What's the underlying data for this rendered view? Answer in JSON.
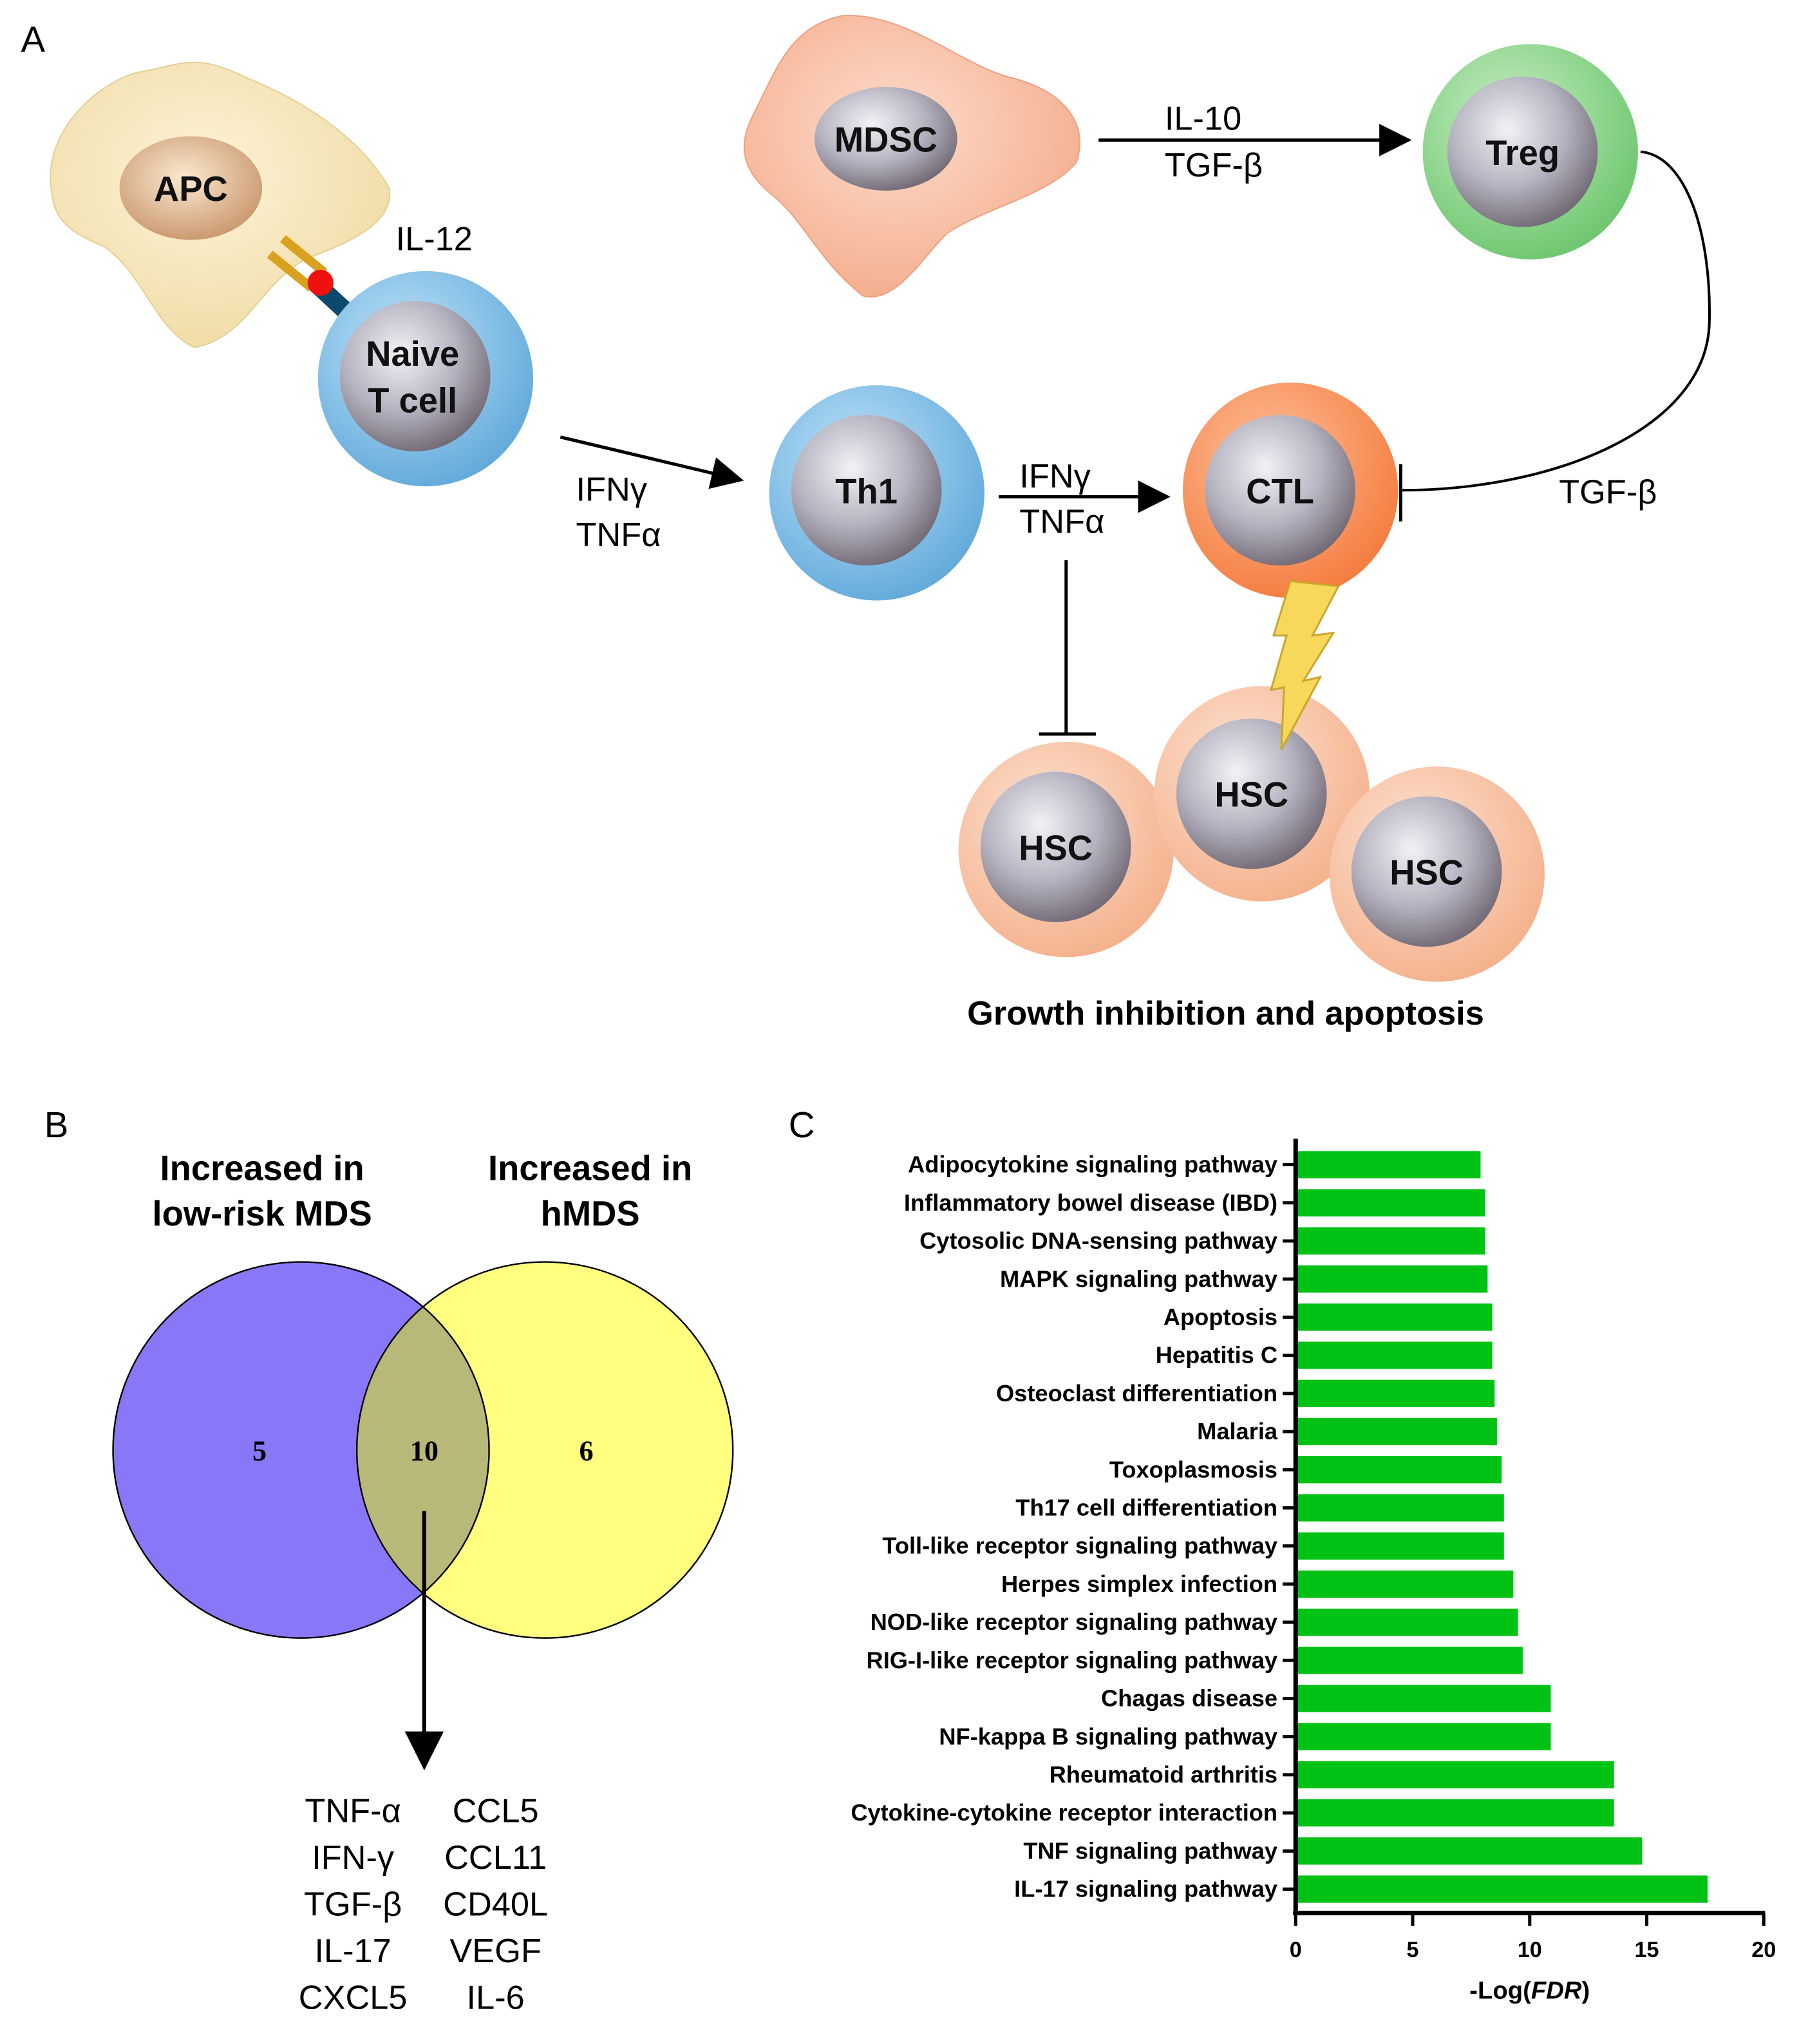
{
  "panel_a": {
    "letter": "A",
    "cells": {
      "apc": "APC",
      "naive_line1": "Naive",
      "naive_line2": "T cell",
      "th1": "Th1",
      "ctl": "CTL",
      "mdsc": "MDSC",
      "treg": "Treg",
      "hsc1": "HSC",
      "hsc2": "HSC",
      "hsc3": "HSC"
    },
    "labels": {
      "il12": "IL-12",
      "naive_to_th1_1": "IFNγ",
      "naive_to_th1_2": "TNFα",
      "th1_to_ctl_1": "IFNγ",
      "th1_to_ctl_2": "TNFα",
      "mdsc_to_treg_1": "IL-10",
      "mdsc_to_treg_2": "TGF-β",
      "treg_to_ctl": "TGF-β"
    },
    "caption": "Growth inhibition and apoptosis"
  },
  "panel_b": {
    "letter": "B",
    "left_title_1": "Increased in",
    "left_title_2": "low-risk MDS",
    "right_title_1": "Increased in",
    "right_title_2": "hMDS",
    "left_only": "5",
    "overlap": "10",
    "right_only": "6",
    "shared_left": [
      "TNF-α",
      "IFN-γ",
      "TGF-β",
      "IL-17",
      "CXCL5"
    ],
    "shared_right": [
      "CCL5",
      "CCL11",
      "CD40L",
      "VEGF",
      "IL-6"
    ],
    "colors": {
      "left": "#8878f8",
      "right": "#ffff80",
      "overlap": "#b8b878"
    }
  },
  "panel_c": {
    "letter": "C"
  },
  "chart_data": {
    "type": "bar",
    "orientation": "horizontal",
    "categories": [
      "Adipocytokine signaling pathway",
      "Inflammatory bowel disease (IBD)",
      "Cytosolic DNA-sensing pathway",
      "MAPK signaling pathway",
      "Apoptosis",
      "Hepatitis C",
      "Osteoclast differentiation",
      "Malaria",
      "Toxoplasmosis",
      "Th17 cell differentiation",
      "Toll-like receptor signaling pathway",
      "Herpes simplex infection",
      "NOD-like receptor signaling pathway",
      "RIG-I-like receptor signaling pathway",
      "Chagas disease",
      "NF-kappa B signaling pathway",
      "Rheumatoid arthritis",
      "Cytokine-cytokine receptor interaction",
      "TNF signaling pathway",
      "IL-17 signaling pathway"
    ],
    "values": [
      7.9,
      8.1,
      8.1,
      8.2,
      8.4,
      8.4,
      8.5,
      8.6,
      8.8,
      8.9,
      8.9,
      9.3,
      9.5,
      9.7,
      10.9,
      10.9,
      13.6,
      13.6,
      14.8,
      17.6
    ],
    "xlabel_prefix": "-Log(",
    "xlabel_italic": "FDR",
    "xlabel_suffix": ")",
    "xlim": [
      0,
      20
    ],
    "xticks": [
      "0",
      "5",
      "10",
      "15",
      "20"
    ],
    "bar_color": "#00c214"
  }
}
